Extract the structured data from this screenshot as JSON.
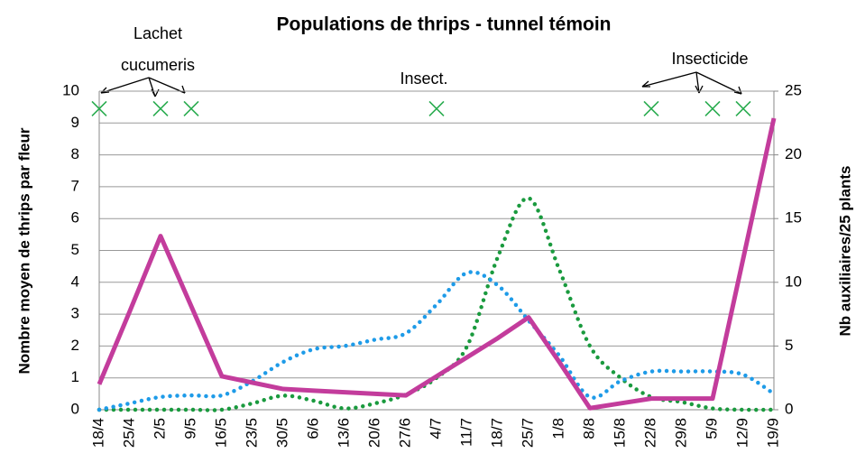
{
  "chart_data": {
    "type": "line",
    "title": "Populations de thrips - tunnel témoin",
    "ylabel": "Nombre moyen de thrips par fleur",
    "y2label": "Nb auxiliaires/25 plants",
    "categories": [
      "18/4",
      "25/4",
      "2/5",
      "9/5",
      "16/5",
      "23/5",
      "30/5",
      "6/6",
      "13/6",
      "20/6",
      "27/6",
      "4/7",
      "11/7",
      "18/7",
      "25/7",
      "1/8",
      "8/8",
      "15/8",
      "22/8",
      "29/8",
      "5/9",
      "12/9",
      "19/9"
    ],
    "ylim": [
      0,
      10
    ],
    "yticks": [
      0,
      1,
      2,
      3,
      4,
      5,
      6,
      7,
      8,
      9,
      10
    ],
    "y2lim": [
      0,
      25
    ],
    "y2ticks": [
      0,
      5,
      10,
      15,
      20,
      25
    ],
    "grid": true,
    "series": [
      {
        "color": "#c33c9c",
        "line_style": "solid",
        "values": [
          0.8,
          3.1,
          5.45,
          3.25,
          1.05,
          0.85,
          0.65,
          0.6,
          0.55,
          0.5,
          0.45,
          1.05,
          1.65,
          2.25,
          2.9,
          1.5,
          0.05,
          0.2,
          0.35,
          0.35,
          0.35,
          4.75,
          9.15
        ]
      },
      {
        "color": "#1e9be8",
        "line_style": "dotted",
        "values": [
          0,
          0.2,
          0.4,
          0.45,
          0.45,
          0.9,
          1.5,
          1.9,
          2.0,
          2.2,
          2.4,
          3.3,
          4.3,
          3.9,
          2.8,
          1.7,
          0.4,
          0.9,
          1.2,
          1.2,
          1.2,
          1.1,
          0.5
        ]
      },
      {
        "color": "#1a9a3e",
        "line_style": "dotted",
        "axis": "y2",
        "values": [
          0,
          0,
          0,
          0,
          0,
          0.5,
          1.1,
          0.7,
          0.1,
          0.5,
          1.2,
          2.5,
          5,
          12,
          16.6,
          11,
          5,
          2.5,
          1,
          0.6,
          0.1,
          0,
          0
        ]
      },
      {
        "color": "#2aac50",
        "line_style": "marker",
        "values": [
          9.45,
          null,
          9.45,
          9.45,
          null,
          null,
          null,
          null,
          null,
          null,
          null,
          9.45,
          null,
          null,
          null,
          null,
          null,
          null,
          9.45,
          null,
          9.45,
          9.45,
          null
        ]
      }
    ],
    "annotations": [
      "Lachet cucumeris",
      "Insect.",
      "Insecticide"
    ]
  }
}
